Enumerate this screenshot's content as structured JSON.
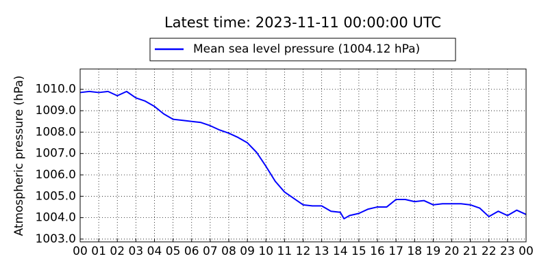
{
  "chart_data": {
    "type": "line",
    "title": "Latest time: 2023-11-11 00:00:00 UTC",
    "y_label": "Atmospheric pressure (hPa)",
    "x": [
      0,
      0.5,
      1,
      1.5,
      2,
      2.5,
      3,
      3.5,
      4,
      4.5,
      5,
      5.5,
      6,
      6.5,
      7,
      7.5,
      8,
      8.5,
      9,
      9.5,
      10,
      10.5,
      11,
      11.5,
      12,
      12.5,
      13,
      13.5,
      14,
      14.2,
      14.5,
      15,
      15.5,
      16,
      16.5,
      17,
      17.5,
      18,
      18.5,
      19,
      19.5,
      20,
      20.5,
      21,
      21.5,
      22,
      22.5,
      23,
      23.5,
      24
    ],
    "series": [
      {
        "name": "Mean sea level pressure (1004.12 hPa)",
        "color": "#0000ff",
        "values": [
          1009.85,
          1009.9,
          1009.85,
          1009.9,
          1009.7,
          1009.9,
          1009.6,
          1009.45,
          1009.2,
          1008.85,
          1008.6,
          1008.55,
          1008.5,
          1008.45,
          1008.3,
          1008.1,
          1007.95,
          1007.75,
          1007.5,
          1007.05,
          1006.4,
          1005.7,
          1005.2,
          1004.9,
          1004.6,
          1004.55,
          1004.55,
          1004.3,
          1004.25,
          1003.95,
          1004.1,
          1004.2,
          1004.4,
          1004.5,
          1004.5,
          1004.85,
          1004.85,
          1004.75,
          1004.8,
          1004.6,
          1004.65,
          1004.65,
          1004.65,
          1004.6,
          1004.45,
          1004.05,
          1004.3,
          1004.1,
          1004.35,
          1004.15
        ]
      }
    ],
    "xlim": [
      0,
      24
    ],
    "xticks": [
      {
        "value": 0,
        "label": "00"
      },
      {
        "value": 1,
        "label": "01"
      },
      {
        "value": 2,
        "label": "02"
      },
      {
        "value": 3,
        "label": "03"
      },
      {
        "value": 4,
        "label": "04"
      },
      {
        "value": 5,
        "label": "05"
      },
      {
        "value": 6,
        "label": "06"
      },
      {
        "value": 7,
        "label": "07"
      },
      {
        "value": 8,
        "label": "08"
      },
      {
        "value": 9,
        "label": "09"
      },
      {
        "value": 10,
        "label": "10"
      },
      {
        "value": 11,
        "label": "11"
      },
      {
        "value": 12,
        "label": "12"
      },
      {
        "value": 13,
        "label": "13"
      },
      {
        "value": 14,
        "label": "14"
      },
      {
        "value": 15,
        "label": "15"
      },
      {
        "value": 16,
        "label": "16"
      },
      {
        "value": 17,
        "label": "17"
      },
      {
        "value": 18,
        "label": "18"
      },
      {
        "value": 19,
        "label": "19"
      },
      {
        "value": 20,
        "label": "20"
      },
      {
        "value": 21,
        "label": "21"
      },
      {
        "value": 22,
        "label": "22"
      },
      {
        "value": 23,
        "label": "23"
      },
      {
        "value": 24,
        "label": "00"
      }
    ],
    "ylim": [
      1002.87,
      1010.95
    ],
    "yticks": [
      {
        "value": 1003,
        "label": "1003.0"
      },
      {
        "value": 1004,
        "label": "1004.0"
      },
      {
        "value": 1005,
        "label": "1005.0"
      },
      {
        "value": 1006,
        "label": "1006.0"
      },
      {
        "value": 1007,
        "label": "1007.0"
      },
      {
        "value": 1008,
        "label": "1008.0"
      },
      {
        "value": 1009,
        "label": "1009.0"
      },
      {
        "value": 1010,
        "label": "1010.0"
      }
    ],
    "grid": true,
    "legend": "top"
  }
}
